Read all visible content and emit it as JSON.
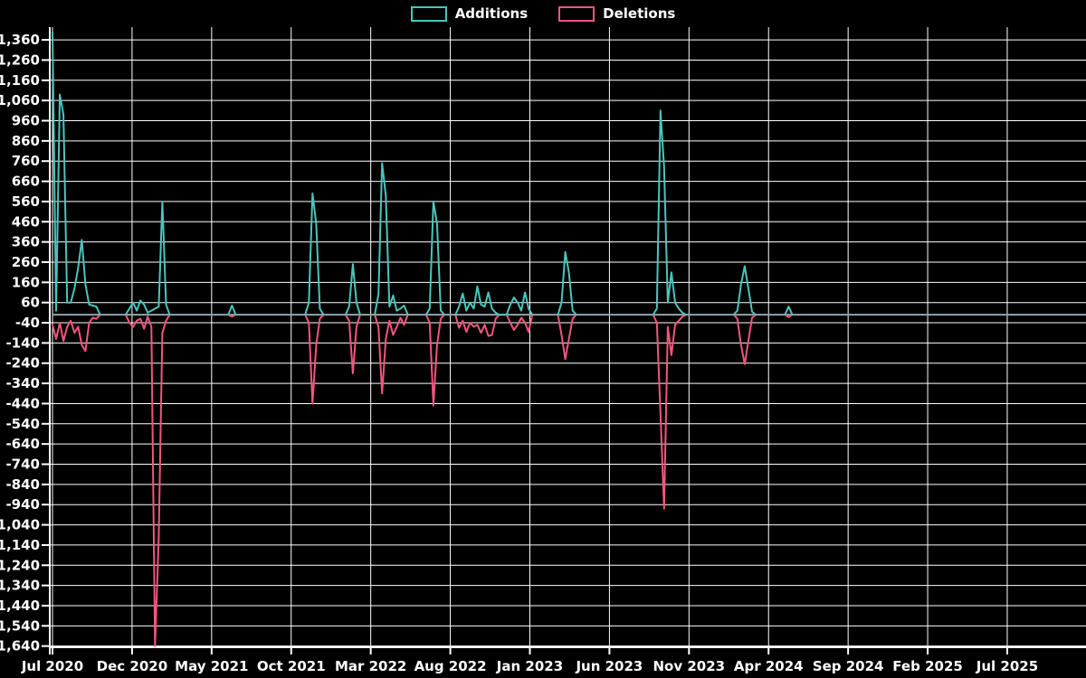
{
  "legend": {
    "additions_label": "Additions",
    "deletions_label": "Deletions"
  },
  "colors": {
    "background": "#000000",
    "grid": "#ffffff",
    "text": "#ffffff",
    "additions": "#4ac5bd",
    "deletions": "#f1567e",
    "zero_baseline": "#8fa5ac"
  },
  "chart_data": {
    "type": "line",
    "title": "",
    "xlabel": "",
    "ylabel": "",
    "legend_position": "top-center",
    "grid": true,
    "x_axis": {
      "unit": "week",
      "start_date": "2020-07-05",
      "weeks_total": 282,
      "tick_interval_months": 5,
      "tick_labels": [
        "Jul 2020",
        "Dec 2020",
        "May 2021",
        "Oct 2021",
        "Mar 2022",
        "Aug 2022",
        "Jan 2023",
        "Jun 2023",
        "Nov 2023",
        "Apr 2024",
        "Sep 2024",
        "Feb 2025",
        "Jul 2025"
      ]
    },
    "y_axis": {
      "min": -1640,
      "max": 1360,
      "tick_step": 100,
      "tick_format": "thousands-comma",
      "top_label": "1,360",
      "bottom_label": "-1,640"
    },
    "series": [
      {
        "name": "Additions",
        "color_key": "additions",
        "sign": "positive"
      },
      {
        "name": "Deletions",
        "color_key": "deletions",
        "sign": "negative"
      }
    ],
    "note": "All weeks not listed in points have additions 0 and deletions 0 (flat zero baseline).",
    "points": [
      {
        "week": 0,
        "date": "2020-07-05",
        "additions": 1400,
        "deletions": -50
      },
      {
        "week": 1,
        "date": "2020-07-12",
        "additions": 20,
        "deletions": -120
      },
      {
        "week": 2,
        "date": "2020-07-19",
        "additions": 1090,
        "deletions": -40
      },
      {
        "week": 3,
        "date": "2020-07-26",
        "additions": 990,
        "deletions": -130
      },
      {
        "week": 4,
        "date": "2020-08-02",
        "additions": 60,
        "deletions": -60
      },
      {
        "week": 5,
        "date": "2020-08-09",
        "additions": 60,
        "deletions": -30
      },
      {
        "week": 6,
        "date": "2020-08-16",
        "additions": 130,
        "deletions": -90
      },
      {
        "week": 7,
        "date": "2020-08-23",
        "additions": 230,
        "deletions": -60
      },
      {
        "week": 8,
        "date": "2020-08-30",
        "additions": 370,
        "deletions": -150
      },
      {
        "week": 9,
        "date": "2020-09-06",
        "additions": 150,
        "deletions": -180
      },
      {
        "week": 10,
        "date": "2020-09-13",
        "additions": 50,
        "deletions": -40
      },
      {
        "week": 11,
        "date": "2020-09-20",
        "additions": 45,
        "deletions": -15
      },
      {
        "week": 12,
        "date": "2020-09-27",
        "additions": 40,
        "deletions": -20
      },
      {
        "week": 21,
        "date": "2020-11-29",
        "additions": 30,
        "deletions": -40
      },
      {
        "week": 22,
        "date": "2020-12-06",
        "additions": 60,
        "deletions": -60
      },
      {
        "week": 23,
        "date": "2020-12-13",
        "additions": 20,
        "deletions": -30
      },
      {
        "week": 24,
        "date": "2020-12-20",
        "additions": 70,
        "deletions": -20
      },
      {
        "week": 25,
        "date": "2020-12-27",
        "additions": 50,
        "deletions": -70
      },
      {
        "week": 26,
        "date": "2021-01-03",
        "additions": 10,
        "deletions": -10
      },
      {
        "week": 27,
        "date": "2021-01-10",
        "additions": 20,
        "deletions": -60
      },
      {
        "week": 28,
        "date": "2021-01-17",
        "additions": 30,
        "deletions": -1640
      },
      {
        "week": 29,
        "date": "2021-01-24",
        "additions": 40,
        "deletions": -1100
      },
      {
        "week": 30,
        "date": "2021-01-31",
        "additions": 560,
        "deletions": -90
      },
      {
        "week": 31,
        "date": "2021-02-07",
        "additions": 50,
        "deletions": -30
      },
      {
        "week": 49,
        "date": "2021-06-13",
        "additions": 45,
        "deletions": -10
      },
      {
        "week": 70,
        "date": "2021-11-07",
        "additions": 60,
        "deletions": -40
      },
      {
        "week": 71,
        "date": "2021-11-14",
        "additions": 600,
        "deletions": -440
      },
      {
        "week": 72,
        "date": "2021-11-21",
        "additions": 450,
        "deletions": -150
      },
      {
        "week": 73,
        "date": "2021-11-28",
        "additions": 30,
        "deletions": -20
      },
      {
        "week": 81,
        "date": "2022-01-23",
        "additions": 40,
        "deletions": -30
      },
      {
        "week": 82,
        "date": "2022-01-30",
        "additions": 250,
        "deletions": -290
      },
      {
        "week": 83,
        "date": "2022-02-06",
        "additions": 60,
        "deletions": -60
      },
      {
        "week": 89,
        "date": "2022-03-20",
        "additions": 100,
        "deletions": -60
      },
      {
        "week": 90,
        "date": "2022-03-27",
        "additions": 750,
        "deletions": -390
      },
      {
        "week": 91,
        "date": "2022-04-03",
        "additions": 590,
        "deletions": -120
      },
      {
        "week": 92,
        "date": "2022-04-10",
        "additions": 40,
        "deletions": -30
      },
      {
        "week": 93,
        "date": "2022-04-17",
        "additions": 95,
        "deletions": -100
      },
      {
        "week": 94,
        "date": "2022-04-24",
        "additions": 20,
        "deletions": -60
      },
      {
        "week": 95,
        "date": "2022-05-01",
        "additions": 30,
        "deletions": -15
      },
      {
        "week": 96,
        "date": "2022-05-08",
        "additions": 45,
        "deletions": -50
      },
      {
        "week": 103,
        "date": "2022-06-26",
        "additions": 30,
        "deletions": -40
      },
      {
        "week": 104,
        "date": "2022-07-03",
        "additions": 560,
        "deletions": -450
      },
      {
        "week": 105,
        "date": "2022-07-10",
        "additions": 450,
        "deletions": -150
      },
      {
        "week": 106,
        "date": "2022-07-17",
        "additions": 20,
        "deletions": -20
      },
      {
        "week": 111,
        "date": "2022-08-21",
        "additions": 40,
        "deletions": -65
      },
      {
        "week": 112,
        "date": "2022-08-28",
        "additions": 105,
        "deletions": -30
      },
      {
        "week": 113,
        "date": "2022-09-04",
        "additions": 20,
        "deletions": -85
      },
      {
        "week": 114,
        "date": "2022-09-11",
        "additions": 60,
        "deletions": -40
      },
      {
        "week": 115,
        "date": "2022-09-18",
        "additions": 30,
        "deletions": -60
      },
      {
        "week": 116,
        "date": "2022-09-25",
        "additions": 140,
        "deletions": -50
      },
      {
        "week": 117,
        "date": "2022-10-02",
        "additions": 50,
        "deletions": -90
      },
      {
        "week": 118,
        "date": "2022-10-09",
        "additions": 40,
        "deletions": -50
      },
      {
        "week": 119,
        "date": "2022-10-16",
        "additions": 110,
        "deletions": -105
      },
      {
        "week": 120,
        "date": "2022-10-23",
        "additions": 30,
        "deletions": -100
      },
      {
        "week": 121,
        "date": "2022-10-30",
        "additions": 10,
        "deletions": -20
      },
      {
        "week": 125,
        "date": "2022-11-27",
        "additions": 50,
        "deletions": -40
      },
      {
        "week": 126,
        "date": "2022-12-04",
        "additions": 85,
        "deletions": -75
      },
      {
        "week": 127,
        "date": "2022-12-11",
        "additions": 60,
        "deletions": -50
      },
      {
        "week": 128,
        "date": "2022-12-18",
        "additions": 20,
        "deletions": -15
      },
      {
        "week": 129,
        "date": "2022-12-25",
        "additions": 110,
        "deletions": -40
      },
      {
        "week": 130,
        "date": "2023-01-01",
        "additions": 30,
        "deletions": -85
      },
      {
        "week": 139,
        "date": "2023-03-05",
        "additions": 60,
        "deletions": -100
      },
      {
        "week": 140,
        "date": "2023-03-12",
        "additions": 310,
        "deletions": -220
      },
      {
        "week": 141,
        "date": "2023-03-19",
        "additions": 210,
        "deletions": -120
      },
      {
        "week": 142,
        "date": "2023-03-26",
        "additions": 20,
        "deletions": -20
      },
      {
        "week": 165,
        "date": "2023-09-03",
        "additions": 30,
        "deletions": -40
      },
      {
        "week": 166,
        "date": "2023-09-10",
        "additions": 1010,
        "deletions": -490
      },
      {
        "week": 167,
        "date": "2023-09-17",
        "additions": 730,
        "deletions": -960
      },
      {
        "week": 168,
        "date": "2023-09-24",
        "additions": 60,
        "deletions": -60
      },
      {
        "week": 169,
        "date": "2023-10-01",
        "additions": 210,
        "deletions": -200
      },
      {
        "week": 170,
        "date": "2023-10-08",
        "additions": 60,
        "deletions": -50
      },
      {
        "week": 171,
        "date": "2023-10-15",
        "additions": 30,
        "deletions": -30
      },
      {
        "week": 172,
        "date": "2023-10-22",
        "additions": 10,
        "deletions": -10
      },
      {
        "week": 187,
        "date": "2024-02-04",
        "additions": 20,
        "deletions": -20
      },
      {
        "week": 188,
        "date": "2024-02-11",
        "additions": 150,
        "deletions": -150
      },
      {
        "week": 189,
        "date": "2024-02-18",
        "additions": 240,
        "deletions": -245
      },
      {
        "week": 190,
        "date": "2024-02-25",
        "additions": 130,
        "deletions": -130
      },
      {
        "week": 191,
        "date": "2024-03-03",
        "additions": 15,
        "deletions": -15
      },
      {
        "week": 201,
        "date": "2024-05-12",
        "additions": 40,
        "deletions": -12
      }
    ]
  }
}
